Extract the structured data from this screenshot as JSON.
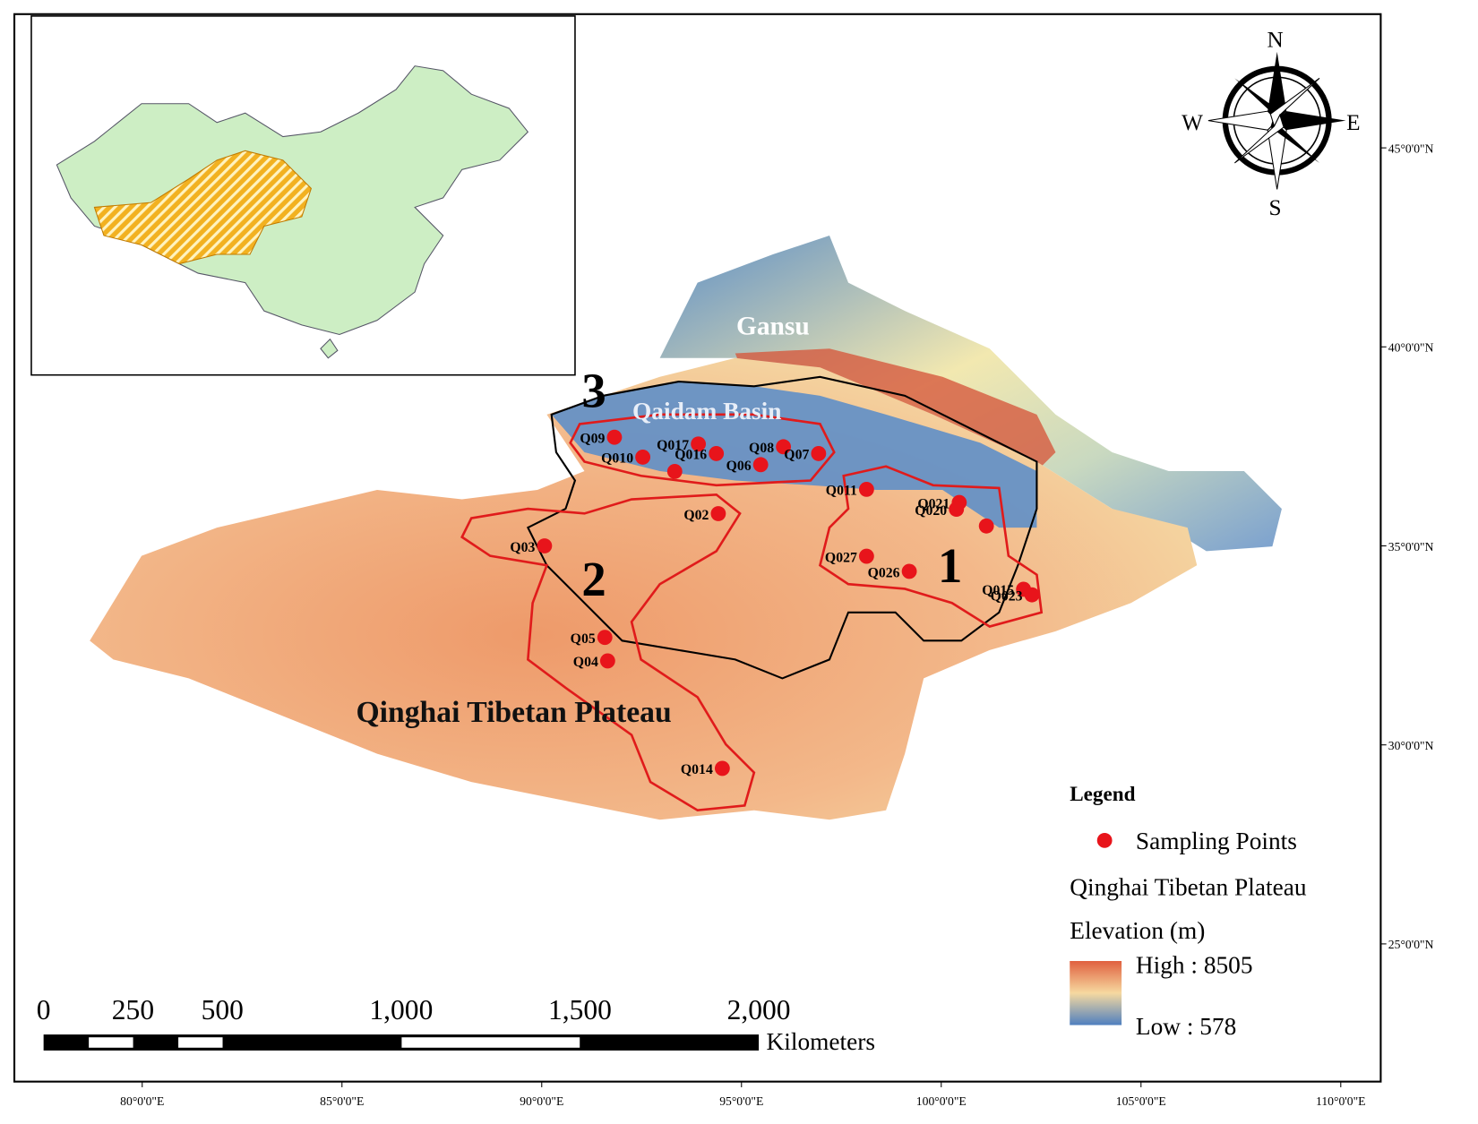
{
  "map": {
    "xlim": [
      76.8,
      111.0
    ],
    "ylim": [
      21.54,
      48.36
    ],
    "xticks": [
      {
        "value": 80,
        "label": "80°0'0\"E"
      },
      {
        "value": 85,
        "label": "85°0'0\"E"
      },
      {
        "value": 90,
        "label": "90°0'0\"E"
      },
      {
        "value": 95,
        "label": "95°0'0\"E"
      },
      {
        "value": 100,
        "label": "100°0'0\"E"
      },
      {
        "value": 105,
        "label": "105°0'0\"E"
      },
      {
        "value": 110,
        "label": "110°0'0\"E"
      }
    ],
    "yticks": [
      {
        "value": 25,
        "label": "25°0'0\"N"
      },
      {
        "value": 30,
        "label": "30°0'0\"N"
      },
      {
        "value": 35,
        "label": "35°0'0\"N"
      },
      {
        "value": 40,
        "label": "40°0'0\"N"
      },
      {
        "value": 45,
        "label": "45°0'0\"N"
      }
    ],
    "compass": {
      "n": "N",
      "s": "S",
      "e": "E",
      "w": "W"
    },
    "labels": {
      "gansu": "Gansu",
      "qaidam": "Qaidam Basin",
      "plateau": "Qinghai Tibetan Plateau",
      "zones": [
        "1",
        "2",
        "3"
      ]
    },
    "point_color": "#e8141b",
    "points": [
      {
        "label": "Q09",
        "lon": 91.82,
        "lat": 37.73
      },
      {
        "label": "Q010",
        "lon": 92.53,
        "lat": 37.23
      },
      {
        "label": "Q017",
        "lon": 93.92,
        "lat": 37.56
      },
      {
        "label": "Q016",
        "lon": 94.37,
        "lat": 37.32
      },
      {
        "label": null,
        "lon": 93.33,
        "lat": 36.87
      },
      {
        "label": "Q06",
        "lon": 95.48,
        "lat": 37.04
      },
      {
        "label": "Q08",
        "lon": 96.05,
        "lat": 37.49
      },
      {
        "label": "Q07",
        "lon": 96.93,
        "lat": 37.32
      },
      {
        "label": "Q011",
        "lon": 98.13,
        "lat": 36.42
      },
      {
        "label": "Q021",
        "lon": 100.45,
        "lat": 36.09
      },
      {
        "label": "Q020",
        "lon": 100.38,
        "lat": 35.92
      },
      {
        "label": null,
        "lon": 101.13,
        "lat": 35.5
      },
      {
        "label": "Q027",
        "lon": 98.13,
        "lat": 34.74
      },
      {
        "label": "Q026",
        "lon": 99.2,
        "lat": 34.36
      },
      {
        "label": "Q015",
        "lon": 102.06,
        "lat": 33.91
      },
      {
        "label": "Q023",
        "lon": 102.27,
        "lat": 33.77
      },
      {
        "label": "Q02",
        "lon": 94.42,
        "lat": 35.81
      },
      {
        "label": "Q03",
        "lon": 90.07,
        "lat": 35.0
      },
      {
        "label": "Q05",
        "lon": 91.58,
        "lat": 32.7
      },
      {
        "label": "Q04",
        "lon": 91.65,
        "lat": 32.11
      },
      {
        "label": "Q014",
        "lon": 94.52,
        "lat": 29.41
      }
    ]
  },
  "scale_bar": {
    "ticks": [
      0,
      250,
      500,
      {
        "value": 1000,
        "label": "1,000"
      },
      {
        "value": 1500,
        "label": "1,500"
      },
      {
        "value": 2000,
        "label": "2,000"
      }
    ],
    "unit": "Kilometers"
  },
  "legend": {
    "title": "Legend",
    "points": "Sampling Points",
    "layer": "Qinghai Tibetan Plateau",
    "field": "Elevation (m)",
    "high": "High : 8505",
    "low": "Low : 578"
  }
}
